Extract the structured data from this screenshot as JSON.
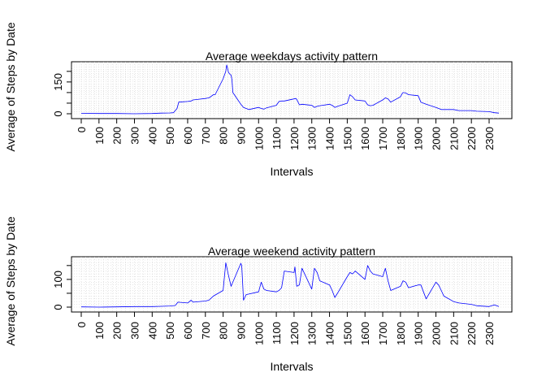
{
  "figure": {
    "shared_ylabel": "Average of Steps by Date"
  },
  "chart_data": [
    {
      "type": "line",
      "title": "Average weekdays activity pattern",
      "xlabel": "Intervals",
      "ylabel": "Average of Steps by Date",
      "xlim": [
        0,
        2355
      ],
      "ylim": [
        0,
        230
      ],
      "grid": true,
      "line_color": "#0000ff",
      "xticks": [
        0,
        100,
        200,
        300,
        400,
        500,
        600,
        700,
        800,
        900,
        1000,
        1100,
        1200,
        1300,
        1400,
        1500,
        1600,
        1700,
        1800,
        1900,
        2000,
        2100,
        2200,
        2300
      ],
      "yticks": [
        0,
        50,
        100,
        150,
        200
      ],
      "ytick_labels": [
        "0",
        "",
        "",
        "150",
        ""
      ],
      "series": [
        {
          "x": [
            0,
            100,
            200,
            300,
            400,
            450,
            500,
            520,
            540,
            550,
            600,
            620,
            630,
            650,
            700,
            720,
            730,
            745,
            755,
            800,
            815,
            820,
            825,
            830,
            835,
            840,
            845,
            850,
            855,
            900,
            915,
            930,
            945,
            1000,
            1015,
            1030,
            1045,
            1100,
            1115,
            1130,
            1145,
            1200,
            1210,
            1215,
            1230,
            1245,
            1300,
            1315,
            1330,
            1345,
            1400,
            1415,
            1430,
            1445,
            1500,
            1515,
            1530,
            1545,
            1600,
            1615,
            1630,
            1645,
            1700,
            1715,
            1730,
            1745,
            1800,
            1810,
            1815,
            1830,
            1845,
            1900,
            1915,
            1930,
            1945,
            2000,
            2030,
            2100,
            2130,
            2200,
            2230,
            2300,
            2330,
            2355
          ],
          "y": [
            2,
            1,
            1,
            0,
            1,
            3,
            4,
            5,
            25,
            55,
            58,
            60,
            65,
            67,
            72,
            75,
            80,
            90,
            90,
            165,
            200,
            230,
            215,
            195,
            190,
            185,
            183,
            160,
            100,
            45,
            30,
            25,
            20,
            30,
            25,
            22,
            28,
            40,
            58,
            60,
            60,
            70,
            72,
            68,
            42,
            45,
            40,
            30,
            35,
            38,
            45,
            40,
            30,
            35,
            50,
            90,
            80,
            65,
            60,
            42,
            38,
            40,
            65,
            75,
            70,
            55,
            80,
            95,
            100,
            98,
            90,
            85,
            55,
            50,
            45,
            30,
            20,
            20,
            15,
            15,
            12,
            10,
            5,
            3
          ]
        }
      ]
    },
    {
      "type": "line",
      "title": "Average weekend activity pattern",
      "xlabel": "Intervals",
      "ylabel": "Average of Steps by Date",
      "xlim": [
        0,
        2355
      ],
      "ylim": [
        0,
        170
      ],
      "grid": true,
      "line_color": "#0000ff",
      "xticks": [
        0,
        100,
        200,
        300,
        400,
        500,
        600,
        700,
        800,
        900,
        1000,
        1100,
        1200,
        1300,
        1400,
        1500,
        1600,
        1700,
        1800,
        1900,
        2000,
        2100,
        2200,
        2300
      ],
      "yticks": [
        0,
        50,
        100,
        150
      ],
      "ytick_labels": [
        "0",
        "",
        "100",
        ""
      ],
      "series": [
        {
          "x": [
            0,
            100,
            200,
            300,
            400,
            450,
            500,
            530,
            545,
            600,
            620,
            630,
            700,
            720,
            745,
            800,
            815,
            830,
            845,
            900,
            905,
            910,
            915,
            930,
            1000,
            1015,
            1030,
            1045,
            1100,
            1115,
            1130,
            1145,
            1200,
            1205,
            1215,
            1230,
            1245,
            1300,
            1315,
            1330,
            1345,
            1400,
            1415,
            1430,
            1445,
            1500,
            1515,
            1530,
            1545,
            1600,
            1615,
            1630,
            1645,
            1700,
            1715,
            1730,
            1745,
            1800,
            1815,
            1830,
            1845,
            1900,
            1915,
            1930,
            1945,
            2000,
            2015,
            2030,
            2045,
            2100,
            2130,
            2200,
            2230,
            2300,
            2330,
            2355
          ],
          "y": [
            1,
            0,
            1,
            2,
            2,
            3,
            4,
            6,
            18,
            15,
            25,
            18,
            22,
            25,
            40,
            60,
            160,
            115,
            75,
            158,
            150,
            90,
            25,
            45,
            55,
            90,
            65,
            60,
            55,
            60,
            70,
            130,
            125,
            145,
            75,
            80,
            140,
            65,
            140,
            125,
            95,
            80,
            60,
            35,
            50,
            110,
            125,
            120,
            130,
            100,
            150,
            130,
            120,
            110,
            140,
            95,
            60,
            75,
            95,
            90,
            70,
            80,
            80,
            55,
            30,
            90,
            80,
            60,
            40,
            20,
            15,
            10,
            5,
            2,
            8,
            2
          ]
        }
      ]
    }
  ]
}
